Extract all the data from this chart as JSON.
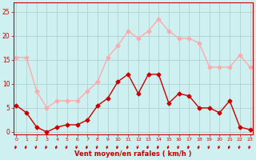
{
  "x": [
    0,
    1,
    2,
    3,
    4,
    5,
    6,
    7,
    8,
    9,
    10,
    11,
    12,
    13,
    14,
    15,
    16,
    17,
    18,
    19,
    20,
    21,
    22,
    23
  ],
  "wind_avg": [
    5.5,
    4,
    1,
    0,
    1,
    1.5,
    1.5,
    2.5,
    5.5,
    7,
    10.5,
    12,
    8,
    12,
    12,
    6,
    8,
    7.5,
    5,
    5,
    4,
    6.5,
    1,
    0.5
  ],
  "wind_gust": [
    15.5,
    15.5,
    8.5,
    5,
    6.5,
    6.5,
    6.5,
    8.5,
    10.5,
    15.5,
    18,
    21,
    19.5,
    21,
    23.5,
    21,
    19.5,
    19.5,
    18.5,
    13.5,
    13.5,
    13.5,
    16,
    13.5
  ],
  "color_avg": "#cc0000",
  "color_gust": "#ffaaaa",
  "bg_color": "#cef0f0",
  "grid_color": "#aacccc",
  "xlabel": "Vent moyen/en rafales ( km/h )",
  "xlabel_color": "#cc0000",
  "ylabel_ticks": [
    0,
    5,
    10,
    15,
    20,
    25
  ],
  "ylim": [
    -0.5,
    27
  ],
  "xlim": [
    -0.3,
    23.3
  ],
  "tick_color": "#cc0000",
  "axis_color": "#cc0000",
  "marker_size": 2.5,
  "line_width": 1.0,
  "figsize": [
    3.2,
    2.0
  ],
  "dpi": 100
}
